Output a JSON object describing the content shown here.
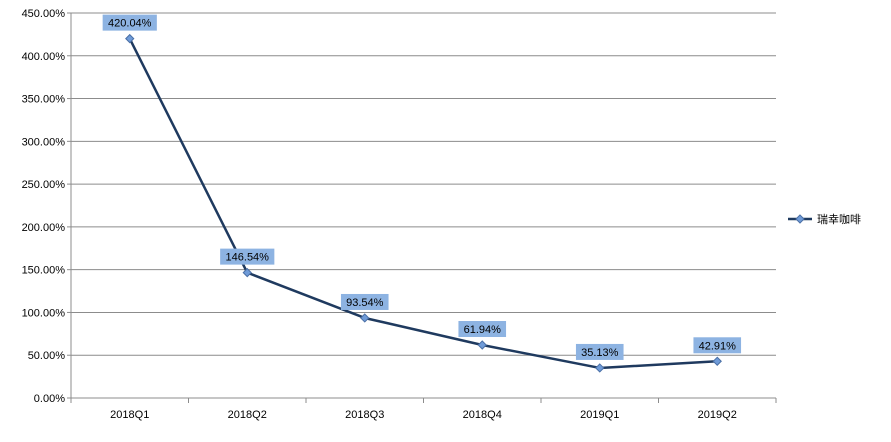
{
  "chart_data": {
    "type": "line",
    "title": "",
    "xlabel": "",
    "ylabel": "",
    "categories": [
      "2018Q1",
      "2018Q2",
      "2018Q3",
      "2018Q4",
      "2019Q1",
      "2019Q2"
    ],
    "y_ticks": [
      "0.00%",
      "50.00%",
      "100.00%",
      "150.00%",
      "200.00%",
      "250.00%",
      "300.00%",
      "350.00%",
      "400.00%",
      "450.00%"
    ],
    "ylim": [
      0,
      450
    ],
    "y_unit": "%",
    "grid": "horizontal",
    "legend_position": "right",
    "series": [
      {
        "name": "瑞幸咖啡",
        "values": [
          420.04,
          146.54,
          93.54,
          61.94,
          35.13,
          42.91
        ],
        "data_labels": [
          "420.04%",
          "146.54%",
          "93.54%",
          "61.94%",
          "35.13%",
          "42.91%"
        ],
        "color": "#1f3a5f",
        "marker_color": "#6f9bd8",
        "label_bg": "#8db3e2"
      }
    ]
  }
}
